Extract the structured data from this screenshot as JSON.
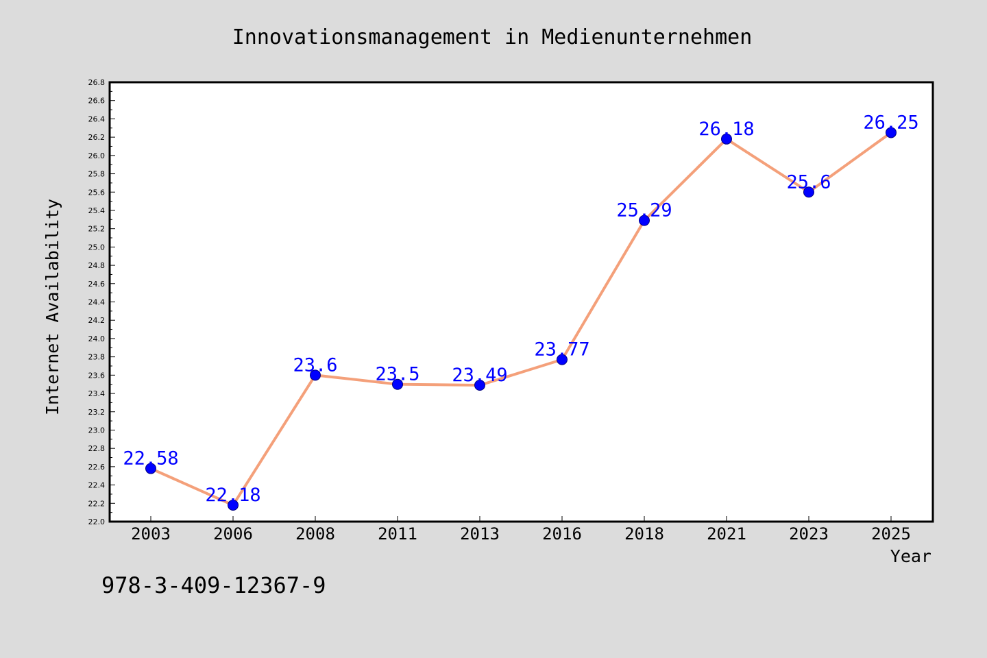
{
  "chart_data": {
    "type": "line",
    "title": "Innovationsmanagement in Medienunternehmen",
    "xlabel": "Year",
    "ylabel": "Internet Availability",
    "categories": [
      "2003",
      "2006",
      "2008",
      "2011",
      "2013",
      "2016",
      "2018",
      "2021",
      "2023",
      "2025"
    ],
    "series": [
      {
        "values": [
          22.58,
          22.18,
          23.6,
          23.5,
          23.49,
          23.77,
          25.29,
          26.18,
          25.6,
          26.25
        ],
        "data_labels": [
          "22.58",
          "22.18",
          "23.6",
          "23.5",
          "23.49",
          "23.77",
          "25.29",
          "26.18",
          "25.6",
          "26.25"
        ]
      }
    ],
    "ylim": [
      22.0,
      26.8
    ],
    "yticks": [
      "22.0",
      "22.2",
      "22.4",
      "22.6",
      "22.8",
      "23.0",
      "23.2",
      "23.4",
      "23.6",
      "23.8",
      "24.0",
      "24.2",
      "24.4",
      "24.6",
      "24.8",
      "25.0",
      "25.2",
      "25.4",
      "25.6",
      "25.8",
      "26.0",
      "26.2",
      "26.4",
      "26.6",
      "26.8"
    ],
    "grid": false,
    "legend": "none",
    "colors": {
      "line": "#f4a07a",
      "marker": "#0000ff",
      "marker_edge": "#000080",
      "data_label": "#0000ff",
      "plot_bg": "#ffffff",
      "figure_bg": "#dcdcdc"
    }
  },
  "footer": {
    "code": "978-3-409-12367-9"
  }
}
